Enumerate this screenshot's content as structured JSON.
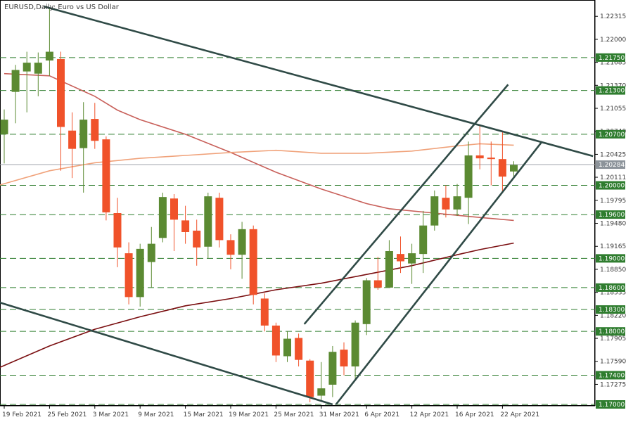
{
  "chart_data": {
    "type": "candlestick",
    "title": "EURUSD,Daily:  Euro vs US Dollar",
    "ylim": [
      1.17,
      1.225
    ],
    "colors": {
      "bull": "#5b8a32",
      "bear": "#f0522a",
      "level": "#2f7d2f",
      "level_label_bg": "#2f7d2f",
      "current_label_bg": "#8c939a",
      "current_line": "#a0a6ac",
      "trendline": "#2f4a46",
      "ma_fast": "#c8605a",
      "ma_slow": "#f0a27a",
      "ma_long": "#7a0e10"
    },
    "y_ticks": [
      "1.22315",
      "1.22000",
      "1.21685",
      "1.21370",
      "1.21055",
      "1.20740",
      "1.20425",
      "1.20111",
      "1.19795",
      "1.19480",
      "1.19165",
      "1.18850",
      "1.18535",
      "1.18220",
      "1.17905",
      "1.17590",
      "1.17275"
    ],
    "x_ticks": [
      {
        "index": 0,
        "label": "19 Feb 2021"
      },
      {
        "index": 4,
        "label": "25 Feb 2021"
      },
      {
        "index": 8,
        "label": "3 Mar 2021"
      },
      {
        "index": 12,
        "label": "9 Mar 2021"
      },
      {
        "index": 16,
        "label": "15 Mar 2021"
      },
      {
        "index": 20,
        "label": "19 Mar 2021"
      },
      {
        "index": 24,
        "label": "25 Mar 2021"
      },
      {
        "index": 28,
        "label": "31 Mar 2021"
      },
      {
        "index": 32,
        "label": "6 Apr 2021"
      },
      {
        "index": 36,
        "label": "12 Apr 2021"
      },
      {
        "index": 40,
        "label": "16 Apr 2021"
      },
      {
        "index": 44,
        "label": "22 Apr 2021"
      }
    ],
    "levels": [
      "1.21750",
      "1.21300",
      "1.20700",
      "1.20000",
      "1.19600",
      "1.19000",
      "1.18600",
      "1.18300",
      "1.18000",
      "1.17400",
      "1.17000"
    ],
    "current_price": "1.20284",
    "candles": [
      {
        "o": 1.207,
        "h": 1.2104,
        "l": 1.203,
        "c": 1.209
      },
      {
        "o": 1.2128,
        "h": 1.2165,
        "l": 1.2085,
        "c": 1.2158
      },
      {
        "o": 1.2156,
        "h": 1.2183,
        "l": 1.21,
        "c": 1.2168
      },
      {
        "o": 1.2153,
        "h": 1.2182,
        "l": 1.2122,
        "c": 1.2168
      },
      {
        "o": 1.2171,
        "h": 1.2243,
        "l": 1.215,
        "c": 1.2183
      },
      {
        "o": 1.2173,
        "h": 1.2183,
        "l": 1.202,
        "c": 1.208
      },
      {
        "o": 1.2075,
        "h": 1.21,
        "l": 1.201,
        "c": 1.205
      },
      {
        "o": 1.2051,
        "h": 1.2114,
        "l": 1.199,
        "c": 1.209
      },
      {
        "o": 1.2091,
        "h": 1.2113,
        "l": 1.205,
        "c": 1.2061
      },
      {
        "o": 1.2063,
        "h": 1.2067,
        "l": 1.1952,
        "c": 1.1963
      },
      {
        "o": 1.1962,
        "h": 1.1983,
        "l": 1.1888,
        "c": 1.1915
      },
      {
        "o": 1.1907,
        "h": 1.1922,
        "l": 1.1837,
        "c": 1.1847
      },
      {
        "o": 1.1847,
        "h": 1.192,
        "l": 1.1834,
        "c": 1.1913
      },
      {
        "o": 1.1895,
        "h": 1.1943,
        "l": 1.186,
        "c": 1.192
      },
      {
        "o": 1.1928,
        "h": 1.199,
        "l": 1.1922,
        "c": 1.1984
      },
      {
        "o": 1.1982,
        "h": 1.1988,
        "l": 1.191,
        "c": 1.1953
      },
      {
        "o": 1.1952,
        "h": 1.1972,
        "l": 1.192,
        "c": 1.1936
      },
      {
        "o": 1.1938,
        "h": 1.1953,
        "l": 1.189,
        "c": 1.1915
      },
      {
        "o": 1.1916,
        "h": 1.199,
        "l": 1.19,
        "c": 1.1985
      },
      {
        "o": 1.1983,
        "h": 1.199,
        "l": 1.1915,
        "c": 1.1925
      },
      {
        "o": 1.1925,
        "h": 1.1933,
        "l": 1.1885,
        "c": 1.1905
      },
      {
        "o": 1.1905,
        "h": 1.195,
        "l": 1.1872,
        "c": 1.194
      },
      {
        "o": 1.194,
        "h": 1.1945,
        "l": 1.1837,
        "c": 1.185
      },
      {
        "o": 1.1845,
        "h": 1.1852,
        "l": 1.18,
        "c": 1.1808
      },
      {
        "o": 1.1808,
        "h": 1.1812,
        "l": 1.1758,
        "c": 1.1767
      },
      {
        "o": 1.1766,
        "h": 1.18,
        "l": 1.1758,
        "c": 1.179
      },
      {
        "o": 1.1791,
        "h": 1.1797,
        "l": 1.1752,
        "c": 1.1761
      },
      {
        "o": 1.176,
        "h": 1.1762,
        "l": 1.1703,
        "c": 1.171
      },
      {
        "o": 1.1712,
        "h": 1.1758,
        "l": 1.1704,
        "c": 1.1722
      },
      {
        "o": 1.1727,
        "h": 1.178,
        "l": 1.171,
        "c": 1.1772
      },
      {
        "o": 1.1775,
        "h": 1.1785,
        "l": 1.174,
        "c": 1.1752
      },
      {
        "o": 1.1752,
        "h": 1.1815,
        "l": 1.1735,
        "c": 1.1812
      },
      {
        "o": 1.181,
        "h": 1.1873,
        "l": 1.1795,
        "c": 1.187
      },
      {
        "o": 1.187,
        "h": 1.1902,
        "l": 1.1857,
        "c": 1.186
      },
      {
        "o": 1.186,
        "h": 1.1925,
        "l": 1.186,
        "c": 1.191
      },
      {
        "o": 1.1906,
        "h": 1.193,
        "l": 1.188,
        "c": 1.1896
      },
      {
        "o": 1.1893,
        "h": 1.192,
        "l": 1.1865,
        "c": 1.1907
      },
      {
        "o": 1.1906,
        "h": 1.1965,
        "l": 1.188,
        "c": 1.1945
      },
      {
        "o": 1.1945,
        "h": 1.1993,
        "l": 1.1938,
        "c": 1.1985
      },
      {
        "o": 1.1983,
        "h": 1.2,
        "l": 1.1956,
        "c": 1.1967
      },
      {
        "o": 1.1967,
        "h": 1.2002,
        "l": 1.1958,
        "c": 1.1985
      },
      {
        "o": 1.1983,
        "h": 1.206,
        "l": 1.1947,
        "c": 1.2041
      },
      {
        "o": 1.2041,
        "h": 1.2083,
        "l": 1.2022,
        "c": 1.2037
      },
      {
        "o": 1.2038,
        "h": 1.206,
        "l": 1.2,
        "c": 1.2036
      },
      {
        "o": 1.2036,
        "h": 1.2075,
        "l": 1.1992,
        "c": 1.2012
      },
      {
        "o": 1.2019,
        "h": 1.2033,
        "l": 1.2012,
        "c": 1.2028
      }
    ],
    "moving_averages": [
      {
        "id": "ma-fast",
        "color_key": "ma_fast",
        "points": [
          [
            0,
            1.2153
          ],
          [
            4,
            1.215
          ],
          [
            8,
            1.2122
          ],
          [
            10,
            1.2103
          ],
          [
            12,
            1.209
          ],
          [
            16,
            1.207
          ],
          [
            20,
            1.2045
          ],
          [
            24,
            1.2018
          ],
          [
            28,
            1.1995
          ],
          [
            32,
            1.1975
          ],
          [
            34,
            1.1968
          ],
          [
            38,
            1.1962
          ],
          [
            42,
            1.1956
          ],
          [
            45,
            1.1952
          ]
        ]
      },
      {
        "id": "ma-slow",
        "color_key": "ma_slow",
        "points": [
          [
            -0.5,
            1.2
          ],
          [
            4,
            1.202
          ],
          [
            8,
            1.2031
          ],
          [
            12,
            1.2037
          ],
          [
            16,
            1.2041
          ],
          [
            20,
            1.2045
          ],
          [
            24,
            1.2048
          ],
          [
            28,
            1.2044
          ],
          [
            32,
            1.2044
          ],
          [
            36,
            1.2047
          ],
          [
            40,
            1.2054
          ],
          [
            42,
            1.2057
          ],
          [
            45,
            1.2055
          ]
        ]
      },
      {
        "id": "ma-long",
        "color_key": "ma_long",
        "points": [
          [
            -0.5,
            1.175
          ],
          [
            4,
            1.178
          ],
          [
            8,
            1.1803
          ],
          [
            12,
            1.182
          ],
          [
            16,
            1.1835
          ],
          [
            20,
            1.1845
          ],
          [
            24,
            1.1857
          ],
          [
            28,
            1.1866
          ],
          [
            32,
            1.1878
          ],
          [
            36,
            1.189
          ],
          [
            40,
            1.1905
          ],
          [
            42,
            1.1912
          ],
          [
            45,
            1.1921
          ]
        ]
      }
    ],
    "trendlines": [
      {
        "id": "resistance-line",
        "points": [
          [
            3.5,
            1.2245
          ],
          [
            52,
            1.204
          ]
        ]
      },
      {
        "id": "channel-lower-line",
        "points": [
          [
            -0.5,
            1.184
          ],
          [
            29,
            1.17
          ]
        ]
      },
      {
        "id": "channel-up-upper",
        "points": [
          [
            26.5,
            1.181
          ],
          [
            44.5,
            1.2138
          ]
        ]
      },
      {
        "id": "channel-up-lower",
        "points": [
          [
            29.3,
            1.17
          ],
          [
            47.5,
            1.206
          ]
        ]
      }
    ]
  }
}
